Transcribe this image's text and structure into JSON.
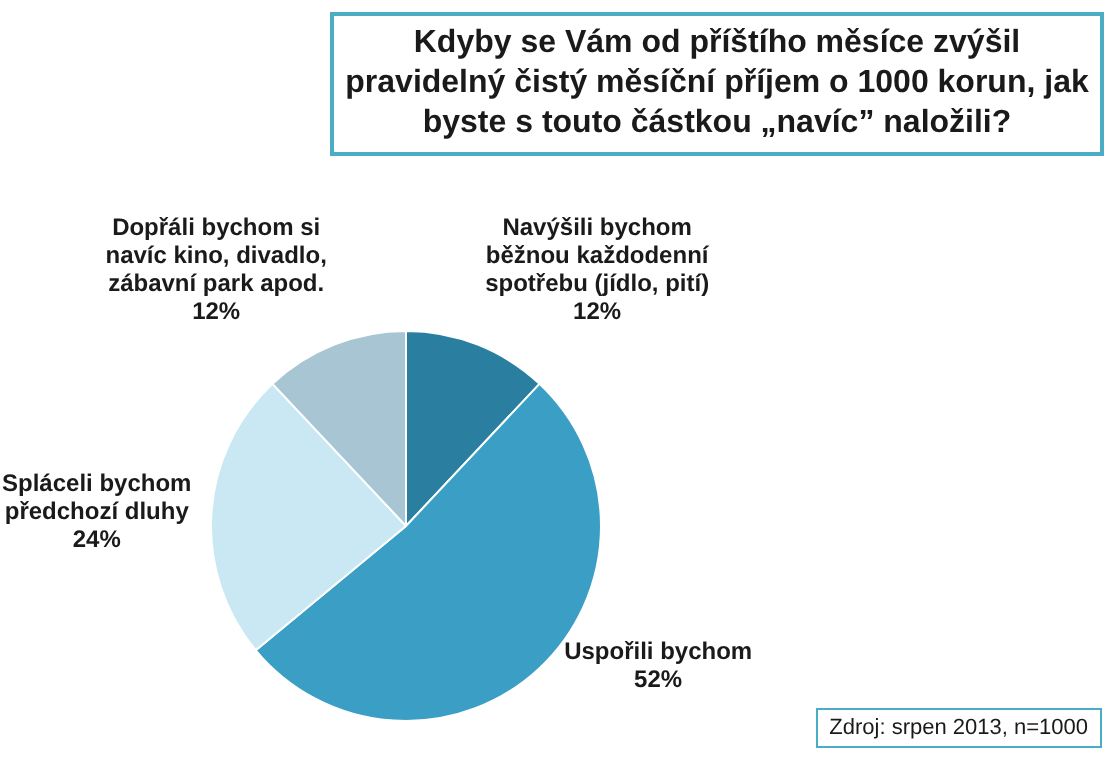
{
  "chart_data": {
    "type": "pie",
    "title": "Kdyby se Vám od příštího měsíce zvýšil pravidelný čistý měsíční příjem o 1000 korun, jak byste s touto částkou „navíc” naložili?",
    "categories": [
      "Navýšili bychom běžnou každodenní spotřebu (jídlo, pití)",
      "Uspořili bychom",
      "Spláceli bychom předchozí dluhy",
      "Dopřáli bychom si navíc kino, divadlo, zábavní park apod."
    ],
    "values": [
      12,
      52,
      24,
      12
    ],
    "value_labels": [
      "12%",
      "52%",
      "24%",
      "12%"
    ],
    "colors": [
      "#2a7fa0",
      "#3b9ec4",
      "#c9e8f4",
      "#a8c5d4"
    ],
    "legend": false,
    "annotations": [
      "Zdroj: srpen 2013, n=1000"
    ]
  }
}
